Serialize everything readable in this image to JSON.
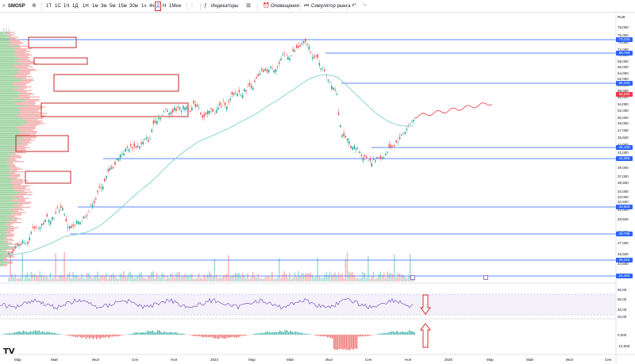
{
  "toolbar": {
    "symbol": "SMOSP",
    "add_icon": "plus-circle-icon",
    "intervals": [
      "1T",
      "1С",
      "1Ч",
      "1Д",
      "1Н",
      "1М"
    ],
    "timeframes": [
      "1м",
      "3м",
      "5м",
      "15м",
      "30м",
      "1ч",
      "4ч",
      "Д",
      "Н",
      "1Мес"
    ],
    "active_timeframe": "Д",
    "indicators_label": "Индикаторы",
    "alerts_label": "Оповещения",
    "replay_label": "Симулятор рынка",
    "undo_icon": "undo-icon",
    "redo_icon": "redo-icon"
  },
  "price_axis": {
    "currency": "RUB",
    "ticks": [
      "78,000",
      "76,000",
      "74,000",
      "72,000",
      "70,000",
      "68,000",
      "66,000",
      "64,000",
      "62,000",
      "60,000",
      "58,000",
      "56,000",
      "54,000",
      "52,000",
      "50,000",
      "48,000",
      "47,000",
      "45,500",
      "44,000",
      "43,000",
      "41,000",
      "39,000",
      "37,000",
      "35,500",
      "34,000",
      "33,000",
      "32,500",
      "31,000",
      "29,500",
      "28,000",
      "27,000",
      "25,500",
      "24,500"
    ],
    "badges": [
      {
        "value": "73,220",
        "color": "#2962ff"
      },
      {
        "value": "68,750",
        "color": "#2962ff"
      },
      {
        "value": "59,320",
        "color": "#2962ff"
      },
      {
        "value": "56,500",
        "color": "#f23645"
      },
      {
        "value": "44,100",
        "color": "#2962ff"
      },
      {
        "value": "42,050",
        "color": "#2962ff"
      },
      {
        "value": "33,620",
        "color": "#2962ff"
      },
      {
        "value": "29,705",
        "color": "#2962ff"
      },
      {
        "value": "26,210",
        "color": "#2962ff"
      },
      {
        "value": "24,460",
        "color": "#2962ff"
      }
    ]
  },
  "rsi_axis": [
    "80,00",
    "60,00",
    "40,00",
    "20,00"
  ],
  "macd_axis": [
    "0,000",
    "-10,000"
  ],
  "time_axis": [
    "Мар",
    "Май",
    "Июл",
    "Сен",
    "Ноя",
    "2024",
    "Мар",
    "Май",
    "Июл",
    "Сен",
    "Ноя",
    "2025",
    "Мар",
    "Май",
    "Июл",
    "Сен"
  ],
  "logo": "TV",
  "colors": {
    "up": "#26a69a",
    "down": "#ef5350",
    "ma": "#7ed0d0",
    "level": "#2962ff",
    "forecast": "#f23645",
    "volume_profile_green": "#81c784",
    "volume_profile_red": "#ef9a9a",
    "rsi": "#7e57c2"
  }
}
